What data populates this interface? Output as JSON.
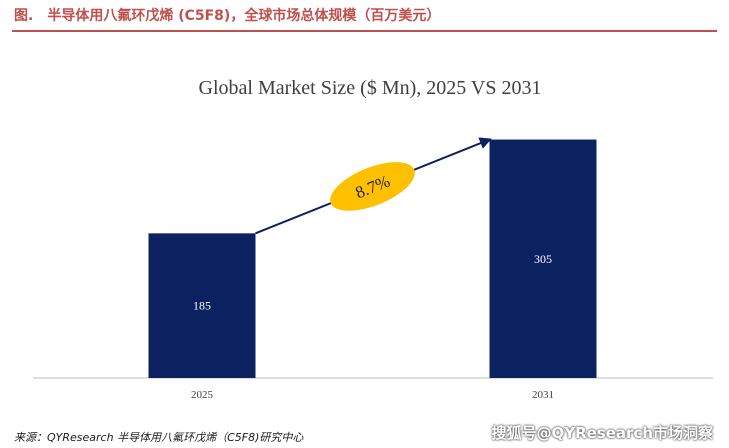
{
  "caption": {
    "number": "图.",
    "text": "半导体用八氟环戊烯 (C5F8)，全球市场总体规模（百万美元）"
  },
  "source_note": "来源：QYResearch 半导体用八氟环戊烯（C5F8)研究中心",
  "watermark": "搜狐号@QYResearch市场洞察",
  "colors": {
    "bar": "#0c2160",
    "arrow": "#0c2160",
    "ellipse": "#ffc000",
    "caption": "#c0504d"
  },
  "chart_data": {
    "type": "bar",
    "title": "Global Market Size ($ Mn), 2025 VS 2031",
    "categories": [
      "2025",
      "2031"
    ],
    "values": [
      185,
      305
    ],
    "data_labels": [
      "185",
      "305"
    ],
    "ylim": [
      0,
      330
    ],
    "grid": false,
    "legend": "none",
    "annotation": {
      "label": "8.7%",
      "shape": "ellipse",
      "arrow": "from 2025 bar to 2031 bar"
    }
  }
}
